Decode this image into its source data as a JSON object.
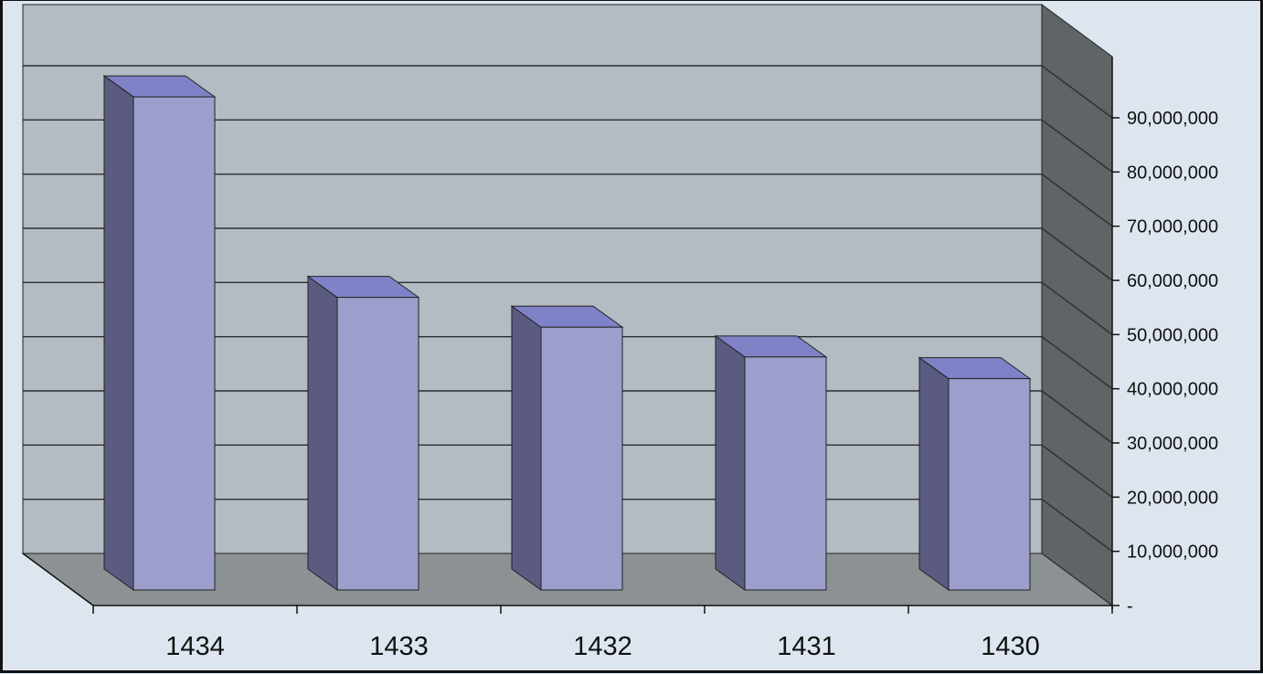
{
  "chart_data": {
    "type": "bar",
    "style": "3d-column",
    "categories": [
      "1434",
      "1433",
      "1432",
      "1431",
      "1430"
    ],
    "values": [
      91000000,
      54000000,
      48500000,
      43000000,
      39000000
    ],
    "ylim": [
      0,
      90000000
    ],
    "y_tick_values": [
      0,
      10000000,
      20000000,
      30000000,
      40000000,
      50000000,
      60000000,
      70000000,
      80000000,
      90000000
    ],
    "y_tick_labels": [
      "-",
      "10,000,000",
      "20,000,000",
      "30,000,000",
      "40,000,000",
      "50,000,000",
      "60,000,000",
      "70,000,000",
      "80,000,000",
      "90,000,000"
    ],
    "y_axis_side": "right",
    "grid": true,
    "legend": "none",
    "title": "",
    "xlabel": "",
    "ylabel": ""
  },
  "colors": {
    "background": "#dde6ef",
    "back_wall": "#b3bbc3",
    "side_wall": "#5f6466",
    "floor": "#8c9194",
    "bar_front": "#9c9fcb",
    "bar_side": "#5b5b82",
    "bar_top": "#7f82c6",
    "gridline": "#2e2e2e"
  }
}
